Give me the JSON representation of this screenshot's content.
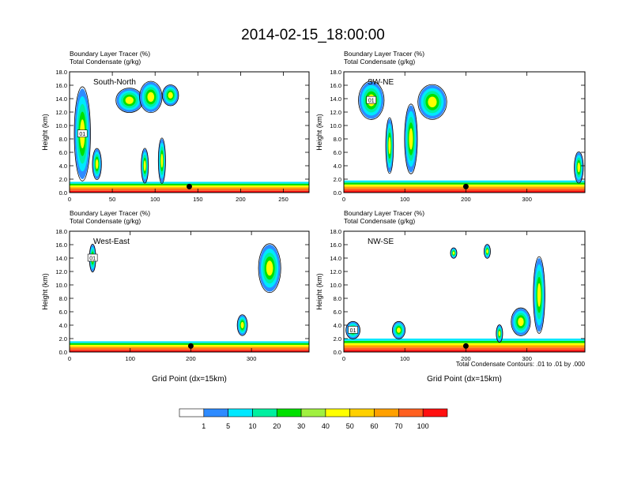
{
  "title": "2014-02-15_18:00:00",
  "footnote": "Total Condensate Contours: .01 to .01 by .000",
  "colors": {
    "bins": [
      "#ffffff",
      "#2e8bff",
      "#00e8ff",
      "#00f0a0",
      "#00e000",
      "#a0f040",
      "#ffff00",
      "#ffd000",
      "#ffa000",
      "#ff6020",
      "#ff1010"
    ],
    "contour": "#000000",
    "marker": "#000000"
  },
  "chart_data": [
    {
      "type": "heatmap",
      "panel": "top-left",
      "subtitle1": "Boundary Layer Tracer    (%)",
      "subtitle2": "Total Condensate    (g/kg)",
      "section": "South-North",
      "xlabel": "",
      "ylabel": "Height (km)",
      "xlim": [
        0,
        280
      ],
      "ylim": [
        0,
        18
      ],
      "xticks": [
        0,
        50,
        100,
        150,
        200,
        250
      ],
      "yticks": [
        0.0,
        2.0,
        4.0,
        6.0,
        8.0,
        10.0,
        12.0,
        14.0,
        16.0,
        18.0
      ],
      "marker_x": 140,
      "contour_label": "01",
      "boundary_layer_top_km": 1.6,
      "plumes": [
        {
          "x": 15,
          "bottom": 2,
          "top": 15.5,
          "width": 18
        },
        {
          "x": 32,
          "bottom": 2,
          "top": 6.5,
          "width": 10
        },
        {
          "x": 70,
          "bottom": 12,
          "top": 15.5,
          "width": 30
        },
        {
          "x": 95,
          "bottom": 12,
          "top": 16.5,
          "width": 25
        },
        {
          "x": 118,
          "bottom": 13,
          "top": 16,
          "width": 18
        },
        {
          "x": 88,
          "bottom": 1.5,
          "top": 6.5,
          "width": 8
        },
        {
          "x": 108,
          "bottom": 1.5,
          "top": 8,
          "width": 8
        }
      ]
    },
    {
      "type": "heatmap",
      "panel": "top-right",
      "subtitle1": "Boundary Layer Tracer    (%)",
      "subtitle2": "Total Condensate    (g/kg)",
      "section": "SW-NE",
      "xlabel": "",
      "ylabel": "Height (km)",
      "xlim": [
        0,
        395
      ],
      "ylim": [
        0,
        18
      ],
      "xticks": [
        0,
        100,
        200,
        300
      ],
      "yticks": [
        0.0,
        2.0,
        4.0,
        6.0,
        8.0,
        10.0,
        12.0,
        14.0,
        16.0,
        18.0
      ],
      "marker_x": 200,
      "contour_label": "01",
      "boundary_layer_top_km": 1.8,
      "plumes": [
        {
          "x": 45,
          "bottom": 11,
          "top": 16.5,
          "width": 40
        },
        {
          "x": 75,
          "bottom": 3,
          "top": 11,
          "width": 12
        },
        {
          "x": 110,
          "bottom": 3,
          "top": 13,
          "width": 20
        },
        {
          "x": 145,
          "bottom": 11,
          "top": 16,
          "width": 45
        },
        {
          "x": 385,
          "bottom": 1.5,
          "top": 6,
          "width": 14
        }
      ]
    },
    {
      "type": "heatmap",
      "panel": "bottom-left",
      "subtitle1": "Boundary Layer Tracer    (%)",
      "subtitle2": "Total Condensate    (g/kg)",
      "section": "West-East",
      "xlabel": "Grid Point (dx=15km)",
      "ylabel": "Height (km)",
      "xlim": [
        0,
        395
      ],
      "ylim": [
        0,
        18
      ],
      "xticks": [
        0,
        100,
        200,
        300
      ],
      "yticks": [
        0.0,
        2.0,
        4.0,
        6.0,
        8.0,
        10.0,
        12.0,
        14.0,
        16.0,
        18.0
      ],
      "marker_x": 200,
      "contour_label": "01",
      "boundary_layer_top_km": 1.6,
      "plumes": [
        {
          "x": 38,
          "bottom": 12,
          "top": 16,
          "width": 10
        },
        {
          "x": 330,
          "bottom": 9,
          "top": 16,
          "width": 35
        },
        {
          "x": 285,
          "bottom": 2.5,
          "top": 5.5,
          "width": 16
        }
      ]
    },
    {
      "type": "heatmap",
      "panel": "bottom-right",
      "subtitle1": "Boundary Layer Tracer    (%)",
      "subtitle2": "Total Condensate    (g/kg)",
      "section": "NW-SE",
      "xlabel": "Grid Point (dx=15km)",
      "ylabel": "Height (km)",
      "xlim": [
        0,
        395
      ],
      "ylim": [
        0,
        18
      ],
      "xticks": [
        0,
        100,
        200,
        300
      ],
      "yticks": [
        0.0,
        2.0,
        4.0,
        6.0,
        8.0,
        10.0,
        12.0,
        14.0,
        16.0,
        18.0
      ],
      "marker_x": 200,
      "contour_label": "01",
      "boundary_layer_top_km": 2.0,
      "plumes": [
        {
          "x": 15,
          "bottom": 2,
          "top": 4.5,
          "width": 22
        },
        {
          "x": 90,
          "bottom": 2,
          "top": 4.5,
          "width": 20
        },
        {
          "x": 180,
          "bottom": 14,
          "top": 15.5,
          "width": 10
        },
        {
          "x": 235,
          "bottom": 14,
          "top": 16,
          "width": 10
        },
        {
          "x": 290,
          "bottom": 2.5,
          "top": 6.5,
          "width": 30
        },
        {
          "x": 320,
          "bottom": 3,
          "top": 14,
          "width": 18
        },
        {
          "x": 255,
          "bottom": 1.5,
          "top": 4,
          "width": 10
        }
      ]
    }
  ],
  "colorbar": {
    "labels": [
      "1",
      "5",
      "10",
      "20",
      "30",
      "40",
      "50",
      "60",
      "70",
      "100"
    ]
  }
}
